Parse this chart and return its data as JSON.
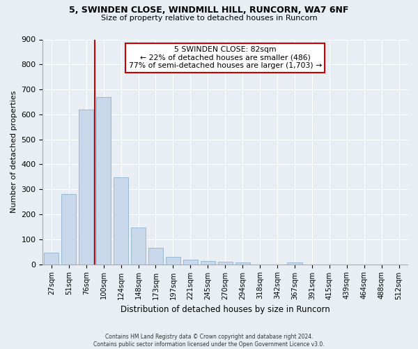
{
  "title1": "5, SWINDEN CLOSE, WINDMILL HILL, RUNCORN, WA7 6NF",
  "title2": "Size of property relative to detached houses in Runcorn",
  "xlabel": "Distribution of detached houses by size in Runcorn",
  "ylabel": "Number of detached properties",
  "categories": [
    "27sqm",
    "51sqm",
    "76sqm",
    "100sqm",
    "124sqm",
    "148sqm",
    "173sqm",
    "197sqm",
    "221sqm",
    "245sqm",
    "270sqm",
    "294sqm",
    "318sqm",
    "342sqm",
    "367sqm",
    "391sqm",
    "415sqm",
    "439sqm",
    "464sqm",
    "488sqm",
    "512sqm"
  ],
  "values": [
    45,
    280,
    620,
    670,
    348,
    148,
    65,
    30,
    18,
    12,
    10,
    8,
    0,
    0,
    8,
    0,
    0,
    0,
    0,
    0,
    0
  ],
  "bar_color": "#c8d8ea",
  "bar_edge_color": "#9ab8d0",
  "bar_width": 0.85,
  "ylim": [
    0,
    900
  ],
  "yticks": [
    0,
    100,
    200,
    300,
    400,
    500,
    600,
    700,
    800,
    900
  ],
  "property_line_color": "#cc0000",
  "annotation_line1": "5 SWINDEN CLOSE: 82sqm",
  "annotation_line2": "← 22% of detached houses are smaller (486)",
  "annotation_line3": "77% of semi-detached houses are larger (1,703) →",
  "annotation_box_color": "#ffffff",
  "annotation_box_edge": "#cc0000",
  "footer_text": "Contains HM Land Registry data © Crown copyright and database right 2024.\nContains public sector information licensed under the Open Government Licence v3.0.",
  "background_color": "#e8eef4",
  "plot_bg_color": "#e8eef4",
  "grid_color": "#ffffff"
}
